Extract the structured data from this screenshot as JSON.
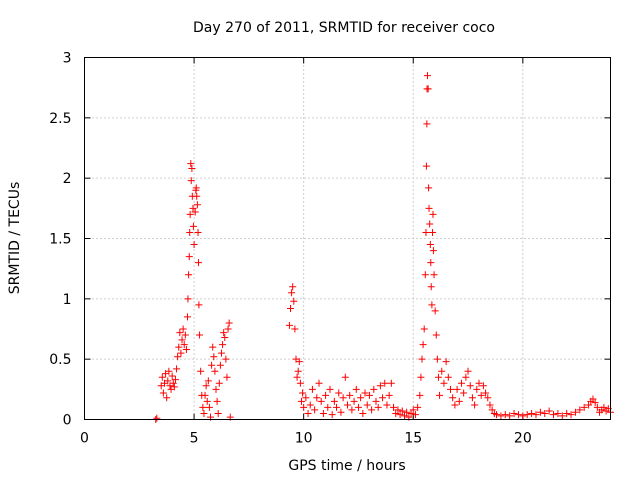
{
  "chart_data": {
    "type": "scatter",
    "title": "Day 270 of 2011, SRMTID for receiver coco",
    "xlabel": "GPS time / hours",
    "ylabel": "SRMTID / TECUs",
    "xlim": [
      0,
      24
    ],
    "ylim": [
      0,
      3
    ],
    "xticks": [
      0,
      5,
      10,
      15,
      20
    ],
    "yticks": [
      0,
      0.5,
      1,
      1.5,
      2,
      2.5,
      3
    ],
    "xtick_labels": [
      "0",
      "5",
      "10",
      "15",
      "20"
    ],
    "ytick_labels": [
      "0",
      "0.5",
      "1",
      "1.5",
      "2",
      "2.5",
      "3"
    ],
    "grid": true,
    "marker": "+",
    "color": "#ff0000",
    "series": [
      {
        "name": "SRMTID",
        "points": [
          [
            3.25,
            0.0
          ],
          [
            3.3,
            0.01
          ],
          [
            3.5,
            0.28
          ],
          [
            3.55,
            0.35
          ],
          [
            3.6,
            0.22
          ],
          [
            3.65,
            0.3
          ],
          [
            3.7,
            0.38
          ],
          [
            3.75,
            0.18
          ],
          [
            3.8,
            0.32
          ],
          [
            3.85,
            0.4
          ],
          [
            3.9,
            0.28
          ],
          [
            3.95,
            0.25
          ],
          [
            4.0,
            0.36
          ],
          [
            4.05,
            0.3
          ],
          [
            4.1,
            0.27
          ],
          [
            4.15,
            0.33
          ],
          [
            4.2,
            0.42
          ],
          [
            4.25,
            0.52
          ],
          [
            4.3,
            0.6
          ],
          [
            4.35,
            0.72
          ],
          [
            4.4,
            0.55
          ],
          [
            4.45,
            0.66
          ],
          [
            4.5,
            0.75
          ],
          [
            4.55,
            0.62
          ],
          [
            4.6,
            0.7
          ],
          [
            4.65,
            0.58
          ],
          [
            4.7,
            0.85
          ],
          [
            4.72,
            1.0
          ],
          [
            4.75,
            1.2
          ],
          [
            4.78,
            1.35
          ],
          [
            4.8,
            1.55
          ],
          [
            4.82,
            1.7
          ],
          [
            4.85,
            2.12
          ],
          [
            4.87,
            1.98
          ],
          [
            4.9,
            2.08
          ],
          [
            4.92,
            1.85
          ],
          [
            4.95,
            1.75
          ],
          [
            4.97,
            1.6
          ],
          [
            5.0,
            1.45
          ],
          [
            5.05,
            1.72
          ],
          [
            5.08,
            1.9
          ],
          [
            5.1,
            1.92
          ],
          [
            5.12,
            1.85
          ],
          [
            5.15,
            1.78
          ],
          [
            5.18,
            1.55
          ],
          [
            5.2,
            1.3
          ],
          [
            5.22,
            0.95
          ],
          [
            5.25,
            0.7
          ],
          [
            5.3,
            0.4
          ],
          [
            5.35,
            0.2
          ],
          [
            5.4,
            0.1
          ],
          [
            5.45,
            0.05
          ],
          [
            5.5,
            0.2
          ],
          [
            5.55,
            0.28
          ],
          [
            5.6,
            0.15
          ],
          [
            5.65,
            0.32
          ],
          [
            5.7,
            0.1
          ],
          [
            5.75,
            0.02
          ],
          [
            5.8,
            0.45
          ],
          [
            5.85,
            0.6
          ],
          [
            5.9,
            0.52
          ],
          [
            5.95,
            0.4
          ],
          [
            6.0,
            0.25
          ],
          [
            6.05,
            0.15
          ],
          [
            6.1,
            0.05
          ],
          [
            6.15,
            0.3
          ],
          [
            6.2,
            0.45
          ],
          [
            6.25,
            0.55
          ],
          [
            6.3,
            0.62
          ],
          [
            6.35,
            0.72
          ],
          [
            6.4,
            0.68
          ],
          [
            6.45,
            0.5
          ],
          [
            6.5,
            0.35
          ],
          [
            6.55,
            0.75
          ],
          [
            6.6,
            0.8
          ],
          [
            6.65,
            0.02
          ],
          [
            9.35,
            0.78
          ],
          [
            9.4,
            0.92
          ],
          [
            9.45,
            1.05
          ],
          [
            9.5,
            1.1
          ],
          [
            9.55,
            0.98
          ],
          [
            9.6,
            0.75
          ],
          [
            9.65,
            0.5
          ],
          [
            9.7,
            0.35
          ],
          [
            9.75,
            0.4
          ],
          [
            9.8,
            0.48
          ],
          [
            9.85,
            0.3
          ],
          [
            9.9,
            0.15
          ],
          [
            9.95,
            0.22
          ],
          [
            10.0,
            0.1
          ],
          [
            10.1,
            0.18
          ],
          [
            10.2,
            0.05
          ],
          [
            10.3,
            0.12
          ],
          [
            10.4,
            0.25
          ],
          [
            10.5,
            0.08
          ],
          [
            10.6,
            0.18
          ],
          [
            10.7,
            0.3
          ],
          [
            10.8,
            0.15
          ],
          [
            10.9,
            0.05
          ],
          [
            11.0,
            0.2
          ],
          [
            11.1,
            0.1
          ],
          [
            11.2,
            0.25
          ],
          [
            11.3,
            0.04
          ],
          [
            11.4,
            0.15
          ],
          [
            11.5,
            0.1
          ],
          [
            11.6,
            0.22
          ],
          [
            11.7,
            0.06
          ],
          [
            11.8,
            0.18
          ],
          [
            11.9,
            0.35
          ],
          [
            12.0,
            0.12
          ],
          [
            12.1,
            0.2
          ],
          [
            12.2,
            0.08
          ],
          [
            12.3,
            0.15
          ],
          [
            12.4,
            0.25
          ],
          [
            12.5,
            0.1
          ],
          [
            12.6,
            0.18
          ],
          [
            12.7,
            0.05
          ],
          [
            12.8,
            0.22
          ],
          [
            12.9,
            0.12
          ],
          [
            13.0,
            0.2
          ],
          [
            13.1,
            0.08
          ],
          [
            13.2,
            0.25
          ],
          [
            13.3,
            0.15
          ],
          [
            13.4,
            0.1
          ],
          [
            13.5,
            0.28
          ],
          [
            13.6,
            0.18
          ],
          [
            13.7,
            0.3
          ],
          [
            13.8,
            0.12
          ],
          [
            13.9,
            0.2
          ],
          [
            14.0,
            0.3
          ],
          [
            14.1,
            0.1
          ],
          [
            14.2,
            0.05
          ],
          [
            14.3,
            0.08
          ],
          [
            14.4,
            0.04
          ],
          [
            14.5,
            0.07
          ],
          [
            14.6,
            0.03
          ],
          [
            14.7,
            0.06
          ],
          [
            14.8,
            0.02
          ],
          [
            14.9,
            0.05
          ],
          [
            15.0,
            0.08
          ],
          [
            15.1,
            0.04
          ],
          [
            15.2,
            0.1
          ],
          [
            15.3,
            0.2
          ],
          [
            15.35,
            0.35
          ],
          [
            15.4,
            0.5
          ],
          [
            15.45,
            0.62
          ],
          [
            15.5,
            0.75
          ],
          [
            15.55,
            1.2
          ],
          [
            15.58,
            1.55
          ],
          [
            15.6,
            2.1
          ],
          [
            15.62,
            2.45
          ],
          [
            15.63,
            2.74
          ],
          [
            15.65,
            2.85
          ],
          [
            15.68,
            2.74
          ],
          [
            15.7,
            1.92
          ],
          [
            15.72,
            1.75
          ],
          [
            15.75,
            1.62
          ],
          [
            15.78,
            1.45
          ],
          [
            15.8,
            1.3
          ],
          [
            15.82,
            1.1
          ],
          [
            15.85,
            0.95
          ],
          [
            15.88,
            1.55
          ],
          [
            15.9,
            1.7
          ],
          [
            15.92,
            1.4
          ],
          [
            15.95,
            1.2
          ],
          [
            16.0,
            0.9
          ],
          [
            16.05,
            0.7
          ],
          [
            16.1,
            0.5
          ],
          [
            16.15,
            0.35
          ],
          [
            16.2,
            0.2
          ],
          [
            16.3,
            0.4
          ],
          [
            16.4,
            0.3
          ],
          [
            16.5,
            0.48
          ],
          [
            16.6,
            0.35
          ],
          [
            16.7,
            0.25
          ],
          [
            16.8,
            0.18
          ],
          [
            16.9,
            0.12
          ],
          [
            17.0,
            0.25
          ],
          [
            17.1,
            0.15
          ],
          [
            17.2,
            0.3
          ],
          [
            17.3,
            0.22
          ],
          [
            17.4,
            0.35
          ],
          [
            17.5,
            0.4
          ],
          [
            17.6,
            0.28
          ],
          [
            17.7,
            0.18
          ],
          [
            17.8,
            0.12
          ],
          [
            17.9,
            0.25
          ],
          [
            18.0,
            0.3
          ],
          [
            18.1,
            0.2
          ],
          [
            18.2,
            0.28
          ],
          [
            18.3,
            0.22
          ],
          [
            18.4,
            0.18
          ],
          [
            18.5,
            0.12
          ],
          [
            18.6,
            0.08
          ],
          [
            18.7,
            0.05
          ],
          [
            18.8,
            0.04
          ],
          [
            19.0,
            0.03
          ],
          [
            19.2,
            0.04
          ],
          [
            19.4,
            0.03
          ],
          [
            19.6,
            0.05
          ],
          [
            19.8,
            0.04
          ],
          [
            20.0,
            0.03
          ],
          [
            20.2,
            0.04
          ],
          [
            20.4,
            0.05
          ],
          [
            20.6,
            0.04
          ],
          [
            20.8,
            0.06
          ],
          [
            21.0,
            0.05
          ],
          [
            21.2,
            0.07
          ],
          [
            21.4,
            0.04
          ],
          [
            21.6,
            0.05
          ],
          [
            21.8,
            0.03
          ],
          [
            22.0,
            0.05
          ],
          [
            22.2,
            0.04
          ],
          [
            22.4,
            0.06
          ],
          [
            22.6,
            0.08
          ],
          [
            22.8,
            0.1
          ],
          [
            23.0,
            0.12
          ],
          [
            23.1,
            0.15
          ],
          [
            23.2,
            0.17
          ],
          [
            23.3,
            0.14
          ],
          [
            23.4,
            0.1
          ],
          [
            23.5,
            0.06
          ],
          [
            23.6,
            0.08
          ],
          [
            23.7,
            0.1
          ],
          [
            23.8,
            0.07
          ],
          [
            23.9,
            0.09
          ],
          [
            24.0,
            0.06
          ]
        ]
      }
    ]
  }
}
